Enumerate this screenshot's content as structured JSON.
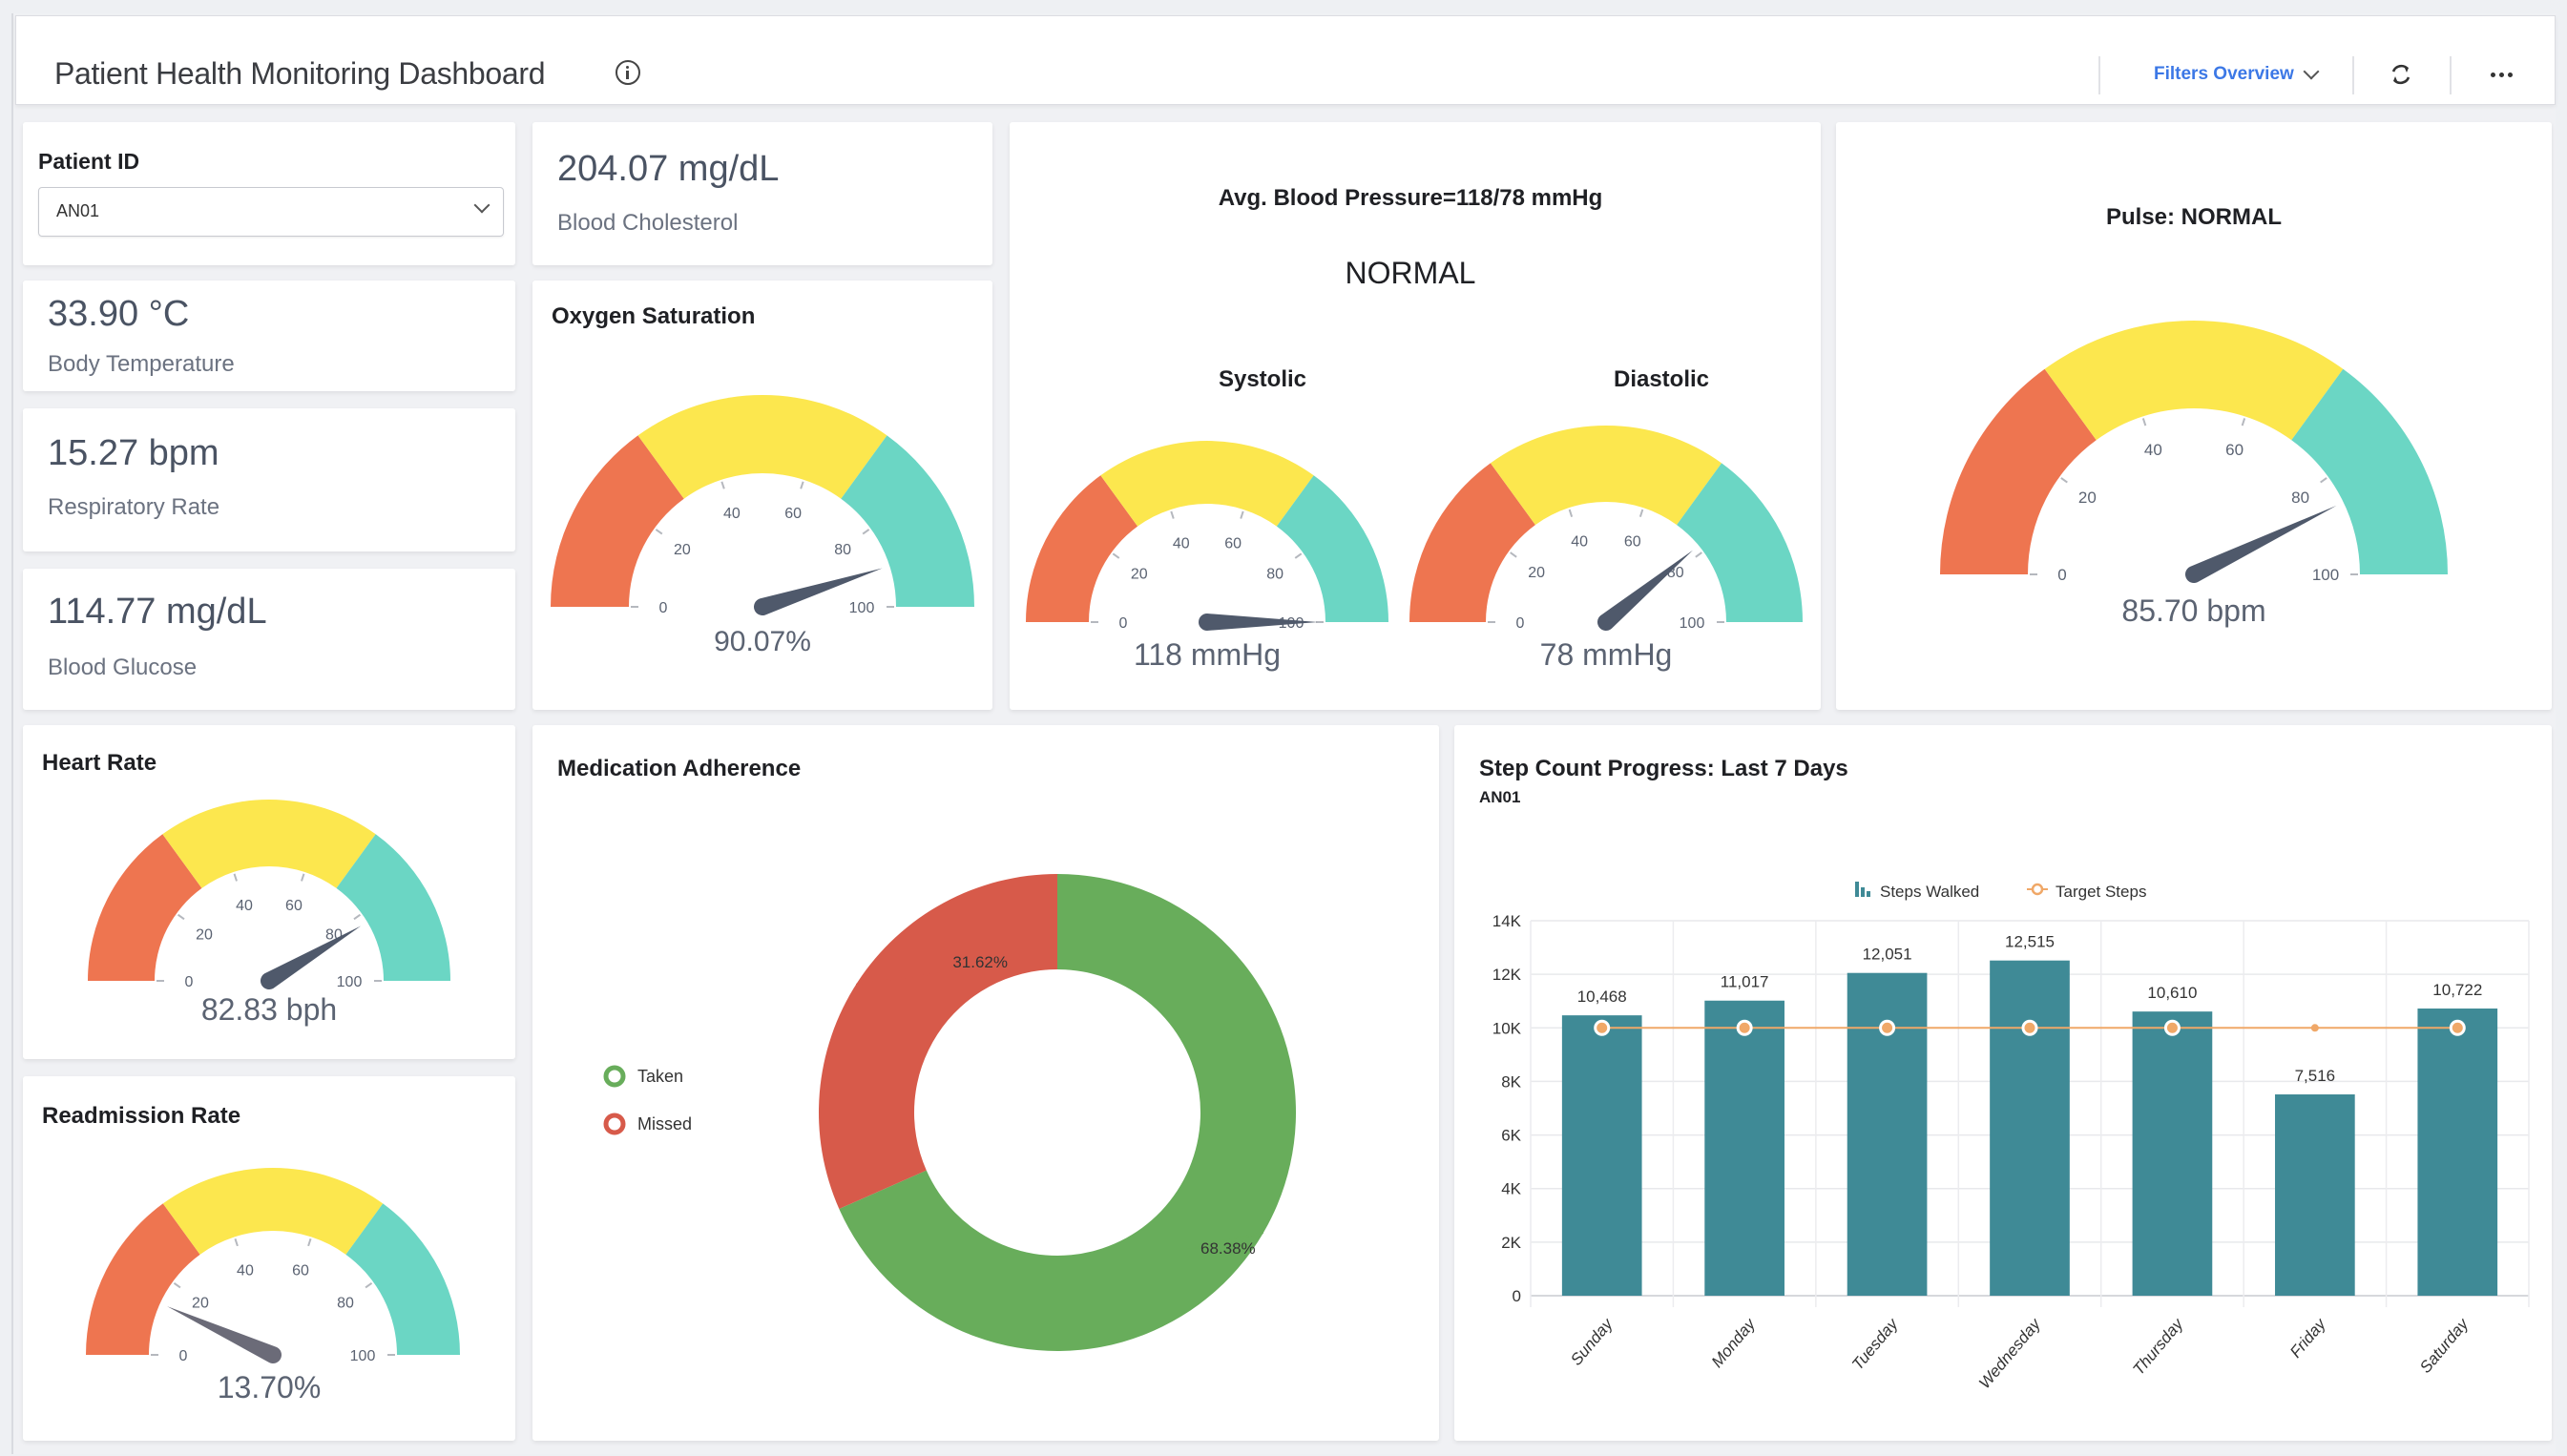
{
  "header": {
    "title": "Patient Health Monitoring Dashboard",
    "filters_label": "Filters Overview",
    "icons": {
      "info": "info-circle-icon",
      "filters_chevron": "chevron-down-icon",
      "refresh": "refresh-icon",
      "more": "more-horizontal-icon"
    }
  },
  "patient_filter": {
    "label": "Patient ID",
    "selected": "AN01"
  },
  "kpis": {
    "cholesterol": {
      "value": "204.07 mg/dL",
      "label": "Blood Cholesterol"
    },
    "temperature": {
      "value": "33.90 °C",
      "label": "Body Temperature"
    },
    "respiratory": {
      "value": "15.27 bpm",
      "label": "Respiratory Rate"
    },
    "glucose": {
      "value": "114.77 mg/dL",
      "label": "Blood Glucose"
    }
  },
  "gauge_common": {
    "min": 0,
    "max": 100,
    "ticks": [
      "0",
      "20",
      "40",
      "60",
      "80",
      "100"
    ],
    "bands": [
      {
        "from": 0,
        "to": 30,
        "color": "#ee7550"
      },
      {
        "from": 30,
        "to": 70,
        "color": "#fce74e"
      },
      {
        "from": 70,
        "to": 100,
        "color": "#6bd6c4"
      }
    ],
    "needle_color": "#4f596b"
  },
  "gauges": {
    "oxygen": {
      "title": "Oxygen Saturation",
      "value": 90.07,
      "display": "90.07%"
    },
    "systolic": {
      "title": "Systolic",
      "value": 100,
      "display": "118 mmHg"
    },
    "diastolic": {
      "title": "Diastolic",
      "value": 78,
      "display": "78 mmHg"
    },
    "pulse": {
      "title": "Pulse: NORMAL",
      "value": 85.7,
      "display": "85.70 bpm"
    },
    "heart_rate": {
      "title": "Heart Rate",
      "value": 82.83,
      "display": "82.83 bph"
    },
    "readmission": {
      "title": "Readmission Rate",
      "value": 13.7,
      "display": "13.70%"
    }
  },
  "blood_pressure": {
    "title": "Avg. Blood Pressure=118/78  mmHg",
    "status": "NORMAL"
  },
  "chart_data": [
    {
      "type": "pie",
      "title": "Medication Adherence",
      "donut": true,
      "slices": [
        {
          "label": "Taken",
          "value": 68.38,
          "display": "68.38%",
          "color": "#68ad5b"
        },
        {
          "label": "Missed",
          "value": 31.62,
          "display": "31.62%",
          "color": "#d75a4a"
        }
      ],
      "legend": [
        "Taken",
        "Missed"
      ],
      "legend_position": "left"
    },
    {
      "type": "bar",
      "title": "Step Count Progress: Last 7 Days",
      "subtitle": "AN01",
      "categories": [
        "Sunday",
        "Monday",
        "Tuesday",
        "Wednesday",
        "Thursday",
        "Friday",
        "Saturday"
      ],
      "series": [
        {
          "name": "Steps Walked",
          "type": "bar",
          "color": "#3f8a96",
          "values": [
            10468,
            11017,
            12051,
            12515,
            10610,
            7516,
            10722
          ],
          "labels": [
            "10,468",
            "11,017",
            "12,051",
            "12,515",
            "10,610",
            "7,516",
            "10,722"
          ]
        },
        {
          "name": "Target Steps",
          "type": "line",
          "color": "#f0a868",
          "values": [
            10000,
            10000,
            10000,
            10000,
            10000,
            10000,
            10000
          ]
        }
      ],
      "yticks": [
        "0",
        "2K",
        "4K",
        "6K",
        "8K",
        "10K",
        "12K",
        "14K"
      ],
      "ylim": [
        0,
        14000
      ],
      "grid": true,
      "legend_position": "top-center",
      "xlabel": "",
      "ylabel": ""
    }
  ]
}
